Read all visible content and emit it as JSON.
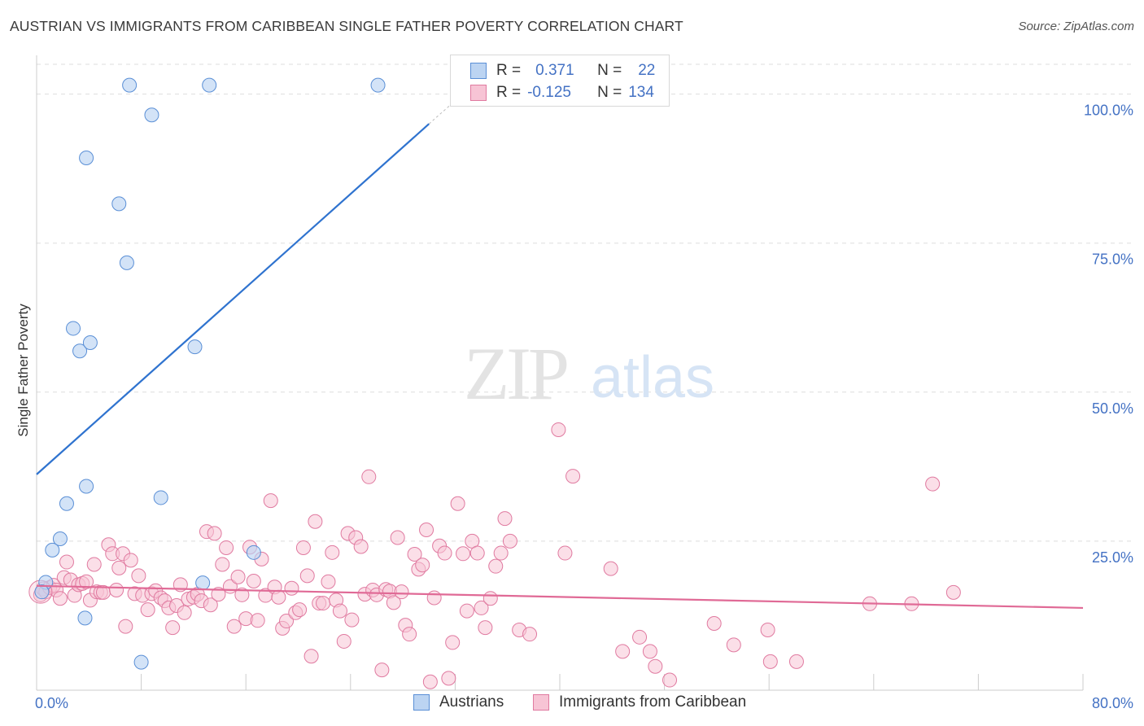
{
  "header": {
    "title": "AUSTRIAN VS IMMIGRANTS FROM CARIBBEAN SINGLE FATHER POVERTY CORRELATION CHART",
    "source": "Source: ZipAtlas.com"
  },
  "watermark": {
    "zip": "ZIP",
    "atlas": "atlas"
  },
  "legend": {
    "rows": [
      {
        "r_label": "R =",
        "r_value": "0.371",
        "n_label": "N =",
        "n_value": "22"
      },
      {
        "r_label": "R =",
        "r_value": "-0.125",
        "n_label": "N =",
        "n_value": "134"
      }
    ]
  },
  "bottom_legend": {
    "austrians": "Austrians",
    "caribbean": "Immigrants from Caribbean"
  },
  "colors": {
    "austrians_fill": "#bcd4f2",
    "austrians_stroke": "#5a8fd6",
    "austrians_line": "#2f73cf",
    "caribbean_fill": "#f7c4d5",
    "caribbean_stroke": "#e07aa0",
    "caribbean_line": "#e06a96",
    "tick_blue": "#4472c4",
    "grid": "#dddddd"
  },
  "chart_data": {
    "type": "scatter",
    "title": "AUSTRIAN VS IMMIGRANTS FROM CARIBBEAN SINGLE FATHER POVERTY CORRELATION CHART",
    "xlabel": "",
    "ylabel": "Single Father Poverty",
    "xlim": [
      0,
      80
    ],
    "ylim": [
      0,
      105
    ],
    "x_tick_labels": [
      "0.0%",
      "80.0%"
    ],
    "y_ticks": [
      25,
      50,
      75,
      100
    ],
    "y_tick_labels": [
      "25.0%",
      "50.0%",
      "75.0%",
      "100.0%"
    ],
    "grid": true,
    "legend_position": "top-center",
    "series": [
      {
        "name": "Austrians",
        "R": 0.371,
        "N": 22,
        "trend": {
          "x0": 0,
          "y0": 36.2,
          "x1": 30,
          "y1": 95.0
        },
        "points": [
          [
            0.7,
            18.1
          ],
          [
            1.2,
            23.5
          ],
          [
            1.8,
            25.4
          ],
          [
            2.3,
            31.3
          ],
          [
            3.3,
            56.9
          ],
          [
            2.8,
            60.7
          ],
          [
            4.1,
            58.3
          ],
          [
            3.8,
            34.2
          ],
          [
            3.7,
            12.1
          ],
          [
            3.8,
            89.3
          ],
          [
            6.3,
            81.6
          ],
          [
            6.9,
            71.7
          ],
          [
            7.1,
            101.5
          ],
          [
            8.8,
            96.5
          ],
          [
            8.0,
            4.7
          ],
          [
            9.5,
            32.3
          ],
          [
            12.1,
            57.6
          ],
          [
            12.7,
            18.0
          ],
          [
            13.2,
            101.5
          ],
          [
            16.6,
            23.1
          ],
          [
            26.1,
            101.5
          ],
          [
            0.4,
            16.5
          ]
        ]
      },
      {
        "name": "Immigrants from Caribbean",
        "R": -0.125,
        "N": 134,
        "trend": {
          "x0": 0,
          "y0": 17.5,
          "x1": 80,
          "y1": 13.8
        },
        "points": [
          [
            0.3,
            16.0
          ],
          [
            0.5,
            17.0
          ],
          [
            0.7,
            16.5
          ],
          [
            1.0,
            17.2
          ],
          [
            1.3,
            17.6
          ],
          [
            1.5,
            16.8
          ],
          [
            1.8,
            15.4
          ],
          [
            2.1,
            18.9
          ],
          [
            2.3,
            21.5
          ],
          [
            2.6,
            18.5
          ],
          [
            2.9,
            15.9
          ],
          [
            3.2,
            17.7
          ],
          [
            3.5,
            17.9
          ],
          [
            3.8,
            18.2
          ],
          [
            4.1,
            15.1
          ],
          [
            4.4,
            21.1
          ],
          [
            4.6,
            16.5
          ],
          [
            4.9,
            16.4
          ],
          [
            5.1,
            16.4
          ],
          [
            5.5,
            24.4
          ],
          [
            5.8,
            22.9
          ],
          [
            6.1,
            16.8
          ],
          [
            6.3,
            20.5
          ],
          [
            6.6,
            22.9
          ],
          [
            6.8,
            10.7
          ],
          [
            7.2,
            21.8
          ],
          [
            7.5,
            16.2
          ],
          [
            7.8,
            19.2
          ],
          [
            8.1,
            15.9
          ],
          [
            8.5,
            13.5
          ],
          [
            8.8,
            16.2
          ],
          [
            9.1,
            16.7
          ],
          [
            9.5,
            15.5
          ],
          [
            9.8,
            15.0
          ],
          [
            10.1,
            13.8
          ],
          [
            10.4,
            10.5
          ],
          [
            10.7,
            14.2
          ],
          [
            11.0,
            17.7
          ],
          [
            11.3,
            13.0
          ],
          [
            11.6,
            15.3
          ],
          [
            12.0,
            15.6
          ],
          [
            12.3,
            16.1
          ],
          [
            12.6,
            15.0
          ],
          [
            13.0,
            26.6
          ],
          [
            13.3,
            14.3
          ],
          [
            13.6,
            26.3
          ],
          [
            13.9,
            16.1
          ],
          [
            14.2,
            21.1
          ],
          [
            14.5,
            23.9
          ],
          [
            14.8,
            17.4
          ],
          [
            15.1,
            10.7
          ],
          [
            15.4,
            19.0
          ],
          [
            15.7,
            16.0
          ],
          [
            16.0,
            12.0
          ],
          [
            16.3,
            24.0
          ],
          [
            16.6,
            18.3
          ],
          [
            16.9,
            11.7
          ],
          [
            17.2,
            22.0
          ],
          [
            17.5,
            15.9
          ],
          [
            17.9,
            31.8
          ],
          [
            18.2,
            17.3
          ],
          [
            18.5,
            15.6
          ],
          [
            18.8,
            10.4
          ],
          [
            19.1,
            11.6
          ],
          [
            19.5,
            17.1
          ],
          [
            19.8,
            13.0
          ],
          [
            20.1,
            13.5
          ],
          [
            20.4,
            23.9
          ],
          [
            20.7,
            19.2
          ],
          [
            21.0,
            5.7
          ],
          [
            21.3,
            28.3
          ],
          [
            21.6,
            14.6
          ],
          [
            21.9,
            14.6
          ],
          [
            22.3,
            18.2
          ],
          [
            22.6,
            23.1
          ],
          [
            22.9,
            15.1
          ],
          [
            23.2,
            13.3
          ],
          [
            23.5,
            8.2
          ],
          [
            23.8,
            26.3
          ],
          [
            24.1,
            11.8
          ],
          [
            24.4,
            25.6
          ],
          [
            24.8,
            24.1
          ],
          [
            25.1,
            16.1
          ],
          [
            25.4,
            35.8
          ],
          [
            25.7,
            16.8
          ],
          [
            26.0,
            16.0
          ],
          [
            26.4,
            3.4
          ],
          [
            26.7,
            16.9
          ],
          [
            27.0,
            16.6
          ],
          [
            27.3,
            14.7
          ],
          [
            27.6,
            25.6
          ],
          [
            27.9,
            16.5
          ],
          [
            28.2,
            10.9
          ],
          [
            28.5,
            9.4
          ],
          [
            28.9,
            22.8
          ],
          [
            29.2,
            20.3
          ],
          [
            29.5,
            21.0
          ],
          [
            29.8,
            26.9
          ],
          [
            30.1,
            1.4
          ],
          [
            30.4,
            15.5
          ],
          [
            30.8,
            24.2
          ],
          [
            31.2,
            23.0
          ],
          [
            31.5,
            2.0
          ],
          [
            31.8,
            8.0
          ],
          [
            32.2,
            31.3
          ],
          [
            32.6,
            22.9
          ],
          [
            32.9,
            13.3
          ],
          [
            33.3,
            25.0
          ],
          [
            33.7,
            23.0
          ],
          [
            34.0,
            13.8
          ],
          [
            34.3,
            10.5
          ],
          [
            34.7,
            15.4
          ],
          [
            35.1,
            20.8
          ],
          [
            35.5,
            23.0
          ],
          [
            35.8,
            28.8
          ],
          [
            36.2,
            25.0
          ],
          [
            39.9,
            43.7
          ],
          [
            36.9,
            10.1
          ],
          [
            37.7,
            9.4
          ],
          [
            40.4,
            23.0
          ],
          [
            41.0,
            35.9
          ],
          [
            43.9,
            20.4
          ],
          [
            44.8,
            6.5
          ],
          [
            46.1,
            8.9
          ],
          [
            46.9,
            6.5
          ],
          [
            47.3,
            4.0
          ],
          [
            48.4,
            1.7
          ],
          [
            51.8,
            11.2
          ],
          [
            53.3,
            7.6
          ],
          [
            55.9,
            10.1
          ],
          [
            56.1,
            4.8
          ],
          [
            58.1,
            4.8
          ],
          [
            68.5,
            34.6
          ],
          [
            70.1,
            16.4
          ],
          [
            66.9,
            14.5
          ],
          [
            63.7,
            14.5
          ]
        ]
      }
    ]
  }
}
